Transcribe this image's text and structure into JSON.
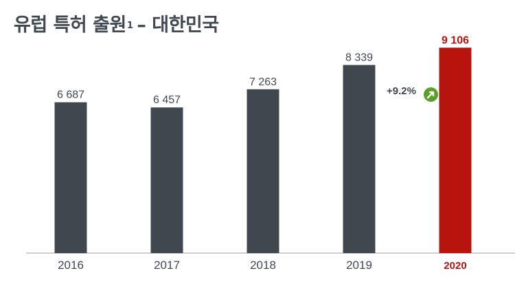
{
  "title": {
    "main": "유럽 특허 출원",
    "footnote": "1",
    "suffix": "– 대한민국"
  },
  "chart_data": {
    "type": "bar",
    "title": "유럽 특허 출원1 – 대한민국",
    "categories": [
      "2016",
      "2017",
      "2018",
      "2019",
      "2020"
    ],
    "values": [
      6687,
      6457,
      7263,
      8339,
      9106
    ],
    "value_labels": [
      "6 687",
      "6 457",
      "7 263",
      "8 339",
      "9 106"
    ],
    "highlight_index": 4,
    "ylim": [
      0,
      10000
    ],
    "grid": false,
    "annotation": {
      "text": "+9.2%",
      "icon": "up-right-arrow-icon"
    },
    "colors": {
      "bar": "#41474f",
      "highlight": "#b7140e",
      "axis": "#bfbfbf",
      "text": "#404852",
      "badge": "#5aa02c"
    }
  }
}
